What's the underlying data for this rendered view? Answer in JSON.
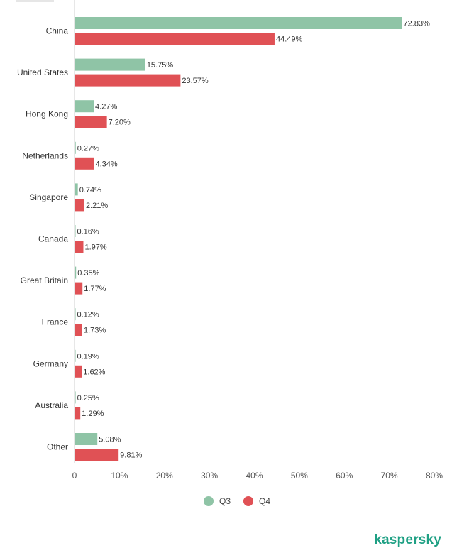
{
  "chart_data": {
    "type": "bar",
    "orientation": "horizontal",
    "categories": [
      "China",
      "United States",
      "Hong Kong",
      "Netherlands",
      "Singapore",
      "Canada",
      "Great Britain",
      "France",
      "Germany",
      "Australia",
      "Other"
    ],
    "series": [
      {
        "name": "Q3",
        "color": "#8fc4a6",
        "values": [
          72.83,
          15.75,
          4.27,
          0.27,
          0.74,
          0.16,
          0.35,
          0.12,
          0.19,
          0.25,
          5.08
        ],
        "labels": [
          "72.83%",
          "15.75%",
          "4.27%",
          "0.27%",
          "0.74%",
          "0.16%",
          "0.35%",
          "0.12%",
          "0.19%",
          "0.25%",
          "5.08%"
        ]
      },
      {
        "name": "Q4",
        "color": "#e05155",
        "values": [
          44.49,
          23.57,
          7.2,
          4.34,
          2.21,
          1.97,
          1.77,
          1.73,
          1.62,
          1.29,
          9.81
        ],
        "labels": [
          "44.49%",
          "23.57%",
          "7.20%",
          "4.34%",
          "2.21%",
          "1.97%",
          "1.77%",
          "1.73%",
          "1.62%",
          "1.29%",
          "9.81%"
        ]
      }
    ],
    "xlim": [
      0,
      80
    ],
    "xticks": [
      0,
      10,
      20,
      30,
      40,
      50,
      60,
      70,
      80
    ],
    "xtick_labels": [
      "0",
      "10%",
      "20%",
      "30%",
      "40%",
      "50%",
      "60%",
      "70%",
      "80%"
    ],
    "grid": false,
    "legend_position": "bottom-center",
    "title": "",
    "xlabel": "",
    "ylabel": ""
  },
  "legend": {
    "items": [
      {
        "label": "Q3",
        "color": "#8fc4a6"
      },
      {
        "label": "Q4",
        "color": "#e05155"
      }
    ]
  },
  "brand": {
    "logo_text": "kaspersky",
    "color": "#1fa084"
  }
}
